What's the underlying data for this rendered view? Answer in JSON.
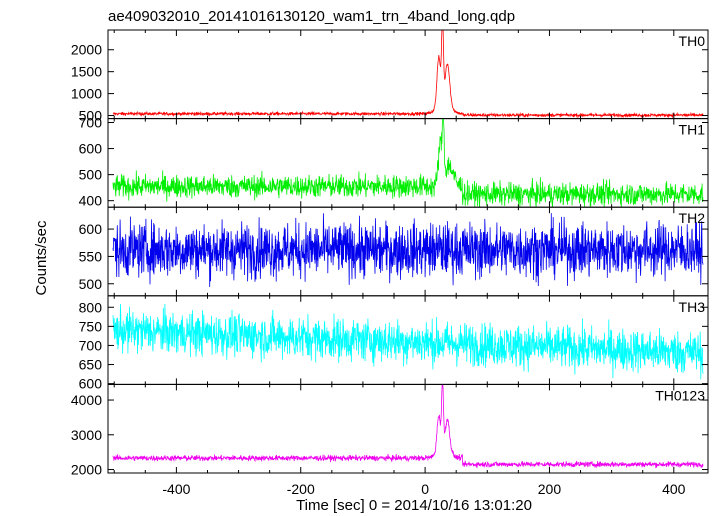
{
  "title": "ae409032010_20141016130120_wam1_trn_4band_long.qdp",
  "xlabel": "Time [sec] 0 = 2014/10/16 13:01:20",
  "ylabel": "Counts/sec",
  "chart_data": {
    "type": "line",
    "title": "ae409032010_20141016130120_wam1_trn_4band_long.qdp",
    "xlabel": "Time [sec] 0 = 2014/10/16 13:01:20",
    "ylabel": "Counts/sec",
    "xlim": [
      -510,
      455
    ],
    "xticks": [
      -400,
      -200,
      0,
      200,
      400
    ],
    "grid": false,
    "panels": [
      {
        "name": "TH0",
        "color": "#ff0000",
        "ylim": [
          430,
          2450
        ],
        "yticks": [
          500,
          1000,
          1500,
          2000
        ],
        "baseline": 540,
        "noise": 18,
        "peaks": [
          {
            "t": 22,
            "height": 1080,
            "width": 4
          },
          {
            "t": 28,
            "height": 1900,
            "width": 2
          },
          {
            "t": 36,
            "height": 900,
            "width": 5
          },
          {
            "t": 30,
            "height": 300,
            "width": 14
          }
        ],
        "summary": {
          "pre_burst_level": 540,
          "burst_peak": 2440,
          "burst_time": 28,
          "post_burst_level": 510
        }
      },
      {
        "name": "TH1",
        "color": "#00ee00",
        "ylim": [
          375,
          715
        ],
        "yticks": [
          400,
          500,
          600,
          700
        ],
        "baseline": 455,
        "noise": 22,
        "peaks": [
          {
            "t": 24,
            "height": 150,
            "width": 4
          },
          {
            "t": 29,
            "height": 240,
            "width": 2
          },
          {
            "t": 38,
            "height": 80,
            "width": 10
          }
        ],
        "summary": {
          "pre_burst_level": 455,
          "burst_peak": 715,
          "burst_time": 29,
          "post_burst_level": 425
        }
      },
      {
        "name": "TH2",
        "color": "#0000ee",
        "ylim": [
          478,
          640
        ],
        "yticks": [
          500,
          550,
          600
        ],
        "baseline": 562,
        "noise": 25,
        "peaks": [],
        "summary": {
          "mean_level": 560
        }
      },
      {
        "name": "TH3",
        "color": "#00ffff",
        "ylim": [
          598,
          830
        ],
        "yticks": [
          600,
          650,
          700,
          750,
          800
        ],
        "baseline": 735,
        "noise": 28,
        "peaks": [],
        "summary": {
          "start_level": 740,
          "end_level": 680
        }
      },
      {
        "name": "TH0123",
        "color": "#ee00ee",
        "ylim": [
          1900,
          4450
        ],
        "yticks": [
          2000,
          3000,
          4000
        ],
        "baseline": 2330,
        "noise": 40,
        "peaks": [
          {
            "t": 22,
            "height": 1050,
            "width": 4
          },
          {
            "t": 28,
            "height": 1900,
            "width": 2
          },
          {
            "t": 36,
            "height": 900,
            "width": 5
          },
          {
            "t": 30,
            "height": 250,
            "width": 14
          }
        ],
        "summary": {
          "pre_burst_level": 2330,
          "burst_peak": 4400,
          "burst_time": 28,
          "post_burst_level": 2150
        }
      }
    ]
  }
}
